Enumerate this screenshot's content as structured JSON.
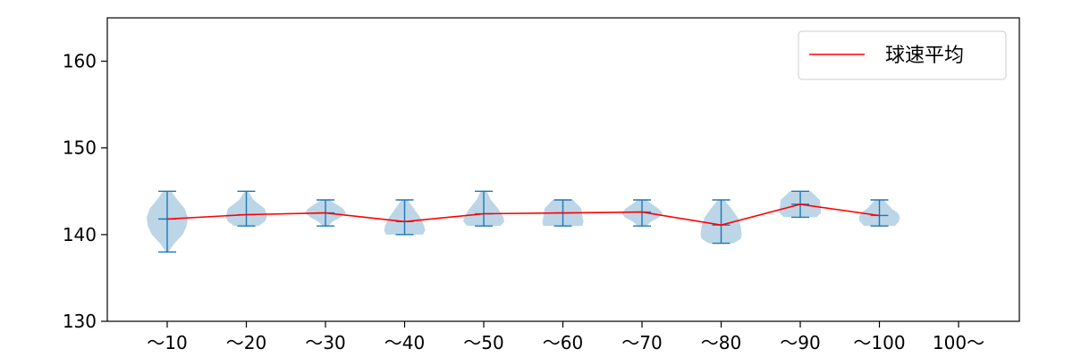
{
  "chart_data": {
    "type": "violin",
    "categories": [
      "〜10",
      "〜20",
      "〜30",
      "〜40",
      "〜50",
      "〜60",
      "〜70",
      "〜80",
      "〜90",
      "〜100",
      "100〜"
    ],
    "ylim": [
      130,
      165
    ],
    "yticks": [
      130,
      140,
      150,
      160
    ],
    "xlabel": "",
    "ylabel": "",
    "legend": {
      "position": "top-right",
      "entries": [
        {
          "label": "球速平均",
          "color": "#ff0000"
        }
      ]
    },
    "mean_line": {
      "name": "球速平均",
      "color": "#ff0000",
      "values": [
        141.8,
        142.3,
        142.5,
        141.5,
        142.4,
        142.5,
        142.6,
        141.1,
        143.5,
        142.2,
        null
      ]
    },
    "distributions": [
      {
        "category": "〜10",
        "min": 138,
        "max": 145,
        "mean": 141.8,
        "density": [
          [
            138,
            0.06
          ],
          [
            139,
            0.35
          ],
          [
            140,
            0.75
          ],
          [
            141,
            0.95
          ],
          [
            142,
            1.0
          ],
          [
            143,
            0.85
          ],
          [
            144,
            0.5
          ],
          [
            145,
            0.2
          ]
        ]
      },
      {
        "category": "〜20",
        "min": 141,
        "max": 145,
        "mean": 142.3,
        "density": [
          [
            141,
            0.6
          ],
          [
            141.5,
            0.9
          ],
          [
            142,
            1.0
          ],
          [
            143,
            0.9
          ],
          [
            144,
            0.35
          ],
          [
            145,
            0.08
          ]
        ]
      },
      {
        "category": "〜30",
        "min": 141,
        "max": 144,
        "mean": 142.5,
        "density": [
          [
            141,
            0.15
          ],
          [
            141.5,
            0.35
          ],
          [
            142,
            0.75
          ],
          [
            142.5,
            1.0
          ],
          [
            143,
            0.85
          ],
          [
            144,
            0.2
          ]
        ]
      },
      {
        "category": "〜40",
        "min": 140,
        "max": 144,
        "mean": 141.5,
        "density": [
          [
            140,
            0.9
          ],
          [
            140.5,
            1.0
          ],
          [
            141,
            0.95
          ],
          [
            142,
            0.75
          ],
          [
            143,
            0.45
          ],
          [
            144,
            0.15
          ]
        ]
      },
      {
        "category": "〜50",
        "min": 141,
        "max": 145,
        "mean": 142.4,
        "density": [
          [
            141,
            0.8
          ],
          [
            141.5,
            1.0
          ],
          [
            142,
            0.95
          ],
          [
            143,
            0.7
          ],
          [
            144,
            0.35
          ],
          [
            145,
            0.15
          ]
        ]
      },
      {
        "category": "〜60",
        "min": 141,
        "max": 144,
        "mean": 142.5,
        "density": [
          [
            141,
            0.95
          ],
          [
            141.5,
            1.0
          ],
          [
            142,
            0.95
          ],
          [
            143,
            0.9
          ],
          [
            144,
            0.5
          ]
        ]
      },
      {
        "category": "〜70",
        "min": 141,
        "max": 144,
        "mean": 142.6,
        "density": [
          [
            141,
            0.2
          ],
          [
            141.5,
            0.45
          ],
          [
            142,
            0.85
          ],
          [
            142.5,
            1.0
          ],
          [
            143,
            0.8
          ],
          [
            144,
            0.2
          ]
        ]
      },
      {
        "category": "〜80",
        "min": 139,
        "max": 144,
        "mean": 141.1,
        "density": [
          [
            139,
            0.6
          ],
          [
            139.5,
            0.95
          ],
          [
            140,
            1.0
          ],
          [
            141,
            0.95
          ],
          [
            142,
            0.8
          ],
          [
            143,
            0.5
          ],
          [
            144,
            0.15
          ]
        ]
      },
      {
        "category": "〜90",
        "min": 142,
        "max": 145,
        "mean": 143.5,
        "density": [
          [
            142,
            0.8
          ],
          [
            142.5,
            1.0
          ],
          [
            143,
            1.0
          ],
          [
            144,
            0.95
          ],
          [
            145,
            0.5
          ]
        ]
      },
      {
        "category": "〜100",
        "min": 141,
        "max": 144,
        "mean": 142.2,
        "density": [
          [
            141,
            0.75
          ],
          [
            141.5,
            0.95
          ],
          [
            142,
            1.0
          ],
          [
            142.5,
            0.9
          ],
          [
            143,
            0.6
          ],
          [
            144,
            0.2
          ]
        ]
      },
      {
        "category": "100〜",
        "min": null,
        "max": null,
        "mean": null,
        "density": []
      }
    ],
    "colors": {
      "violin_fill": "#a6c8e0",
      "violin_edge": "#1f77b4",
      "mean_line": "#ff0000"
    }
  }
}
